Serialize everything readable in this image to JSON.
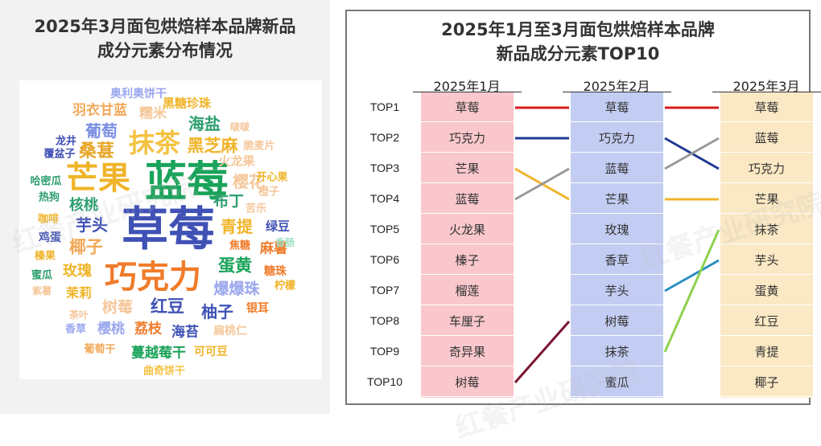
{
  "left": {
    "title_line1": "2025年3月面包烘焙样本品牌新品",
    "title_line2": "成分元素分布情况"
  },
  "right": {
    "title_line1": "2025年1月至3月面包烘焙样本品牌",
    "title_line2": "新品成分元素TOP10"
  },
  "watermark": "红餐产业研究院",
  "chart_data": [
    {
      "type": "wordcloud",
      "title": "2025年3月面包烘焙样本品牌新品成分元素分布情况",
      "words": [
        {
          "text": "草莓",
          "color": "#3f51b5"
        },
        {
          "text": "蓝莓",
          "color": "#1aa35a"
        },
        {
          "text": "芒果",
          "color": "#f0b429"
        },
        {
          "text": "巧克力",
          "color": "#f07c2a"
        },
        {
          "text": "抹茶",
          "color": "#f5c242"
        },
        {
          "text": "桑葚",
          "color": "#e8a72a"
        },
        {
          "text": "海盐",
          "color": "#2e9e6f"
        },
        {
          "text": "黑芝麻",
          "color": "#f0b429"
        },
        {
          "text": "葡萄",
          "color": "#7b8fe0"
        },
        {
          "text": "羽衣甘蓝",
          "color": "#f2a95a"
        },
        {
          "text": "糯米",
          "color": "#f5c79a"
        },
        {
          "text": "黑糖珍珠",
          "color": "#f0b429"
        },
        {
          "text": "奥利奥饼干",
          "color": "#9aa7ee"
        },
        {
          "text": "啵啵",
          "color": "#f5c79a"
        },
        {
          "text": "脆麦片",
          "color": "#f5c79a"
        },
        {
          "text": "火龙果",
          "color": "#f5c79a"
        },
        {
          "text": "龙井",
          "color": "#3f51b5"
        },
        {
          "text": "覆盆子",
          "color": "#3f51b5"
        },
        {
          "text": "樱花",
          "color": "#f5c79a"
        },
        {
          "text": "开心果",
          "color": "#f0b429"
        },
        {
          "text": "橙子",
          "color": "#f5c79a"
        },
        {
          "text": "哈密瓜",
          "color": "#2e9e6f"
        },
        {
          "text": "热狗",
          "color": "#2e9e6f"
        },
        {
          "text": "核桃",
          "color": "#2e9e6f"
        },
        {
          "text": "布丁",
          "color": "#2e9e6f"
        },
        {
          "text": "苦乐",
          "color": "#f5c79a"
        },
        {
          "text": "咖啡",
          "color": "#f0b429"
        },
        {
          "text": "芋头",
          "color": "#3f51b5"
        },
        {
          "text": "青提",
          "color": "#f0b429"
        },
        {
          "text": "绿豆",
          "color": "#3f51b5"
        },
        {
          "text": "鸡蛋",
          "color": "#3f51b5"
        },
        {
          "text": "椰子",
          "color": "#f2a95a"
        },
        {
          "text": "焦糖",
          "color": "#f07c2a"
        },
        {
          "text": "麻薯",
          "color": "#f07c2a"
        },
        {
          "text": "香肠",
          "color": "#9ee0c0"
        },
        {
          "text": "榛果",
          "color": "#f0b429"
        },
        {
          "text": "玫瑰",
          "color": "#f0b429"
        },
        {
          "text": "蛋黄",
          "color": "#1aa35a"
        },
        {
          "text": "糖珠",
          "color": "#f07c2a"
        },
        {
          "text": "蜜瓜",
          "color": "#2e9e6f"
        },
        {
          "text": "紫薯",
          "color": "#f5c79a"
        },
        {
          "text": "茉莉",
          "color": "#f0b429"
        },
        {
          "text": "爆爆珠",
          "color": "#9aa7ee"
        },
        {
          "text": "柠檬",
          "color": "#f0b429"
        },
        {
          "text": "树莓",
          "color": "#f5c79a"
        },
        {
          "text": "红豆",
          "color": "#3f51b5"
        },
        {
          "text": "柚子",
          "color": "#3f51b5"
        },
        {
          "text": "银耳",
          "color": "#f07c2a"
        },
        {
          "text": "茶叶",
          "color": "#f5c79a"
        },
        {
          "text": "香草",
          "color": "#9aa7ee"
        },
        {
          "text": "樱桃",
          "color": "#9aa7ee"
        },
        {
          "text": "荔枝",
          "color": "#f07c2a"
        },
        {
          "text": "海苔",
          "color": "#3f51b5"
        },
        {
          "text": "扁桃仁",
          "color": "#f5c79a"
        },
        {
          "text": "葡萄干",
          "color": "#f2a95a"
        },
        {
          "text": "蔓越莓干",
          "color": "#1aa35a"
        },
        {
          "text": "可可豆",
          "color": "#f0b429"
        },
        {
          "text": "曲奇饼干",
          "color": "#f5c242"
        }
      ]
    },
    {
      "type": "table",
      "title": "2025年1月至3月面包烘焙样本品牌新品成分元素TOP10",
      "ranks": [
        "TOP1",
        "TOP2",
        "TOP3",
        "TOP4",
        "TOP5",
        "TOP6",
        "TOP7",
        "TOP8",
        "TOP9",
        "TOP10"
      ],
      "columns": [
        {
          "name": "2025年1月",
          "color": "#f9c7cc",
          "items": [
            "草莓",
            "巧克力",
            "芒果",
            "蓝莓",
            "火龙果",
            "榛子",
            "榴莲",
            "车厘子",
            "奇异果",
            "树莓"
          ]
        },
        {
          "name": "2025年2月",
          "color": "#c3cdf3",
          "items": [
            "草莓",
            "巧克力",
            "蓝莓",
            "芒果",
            "玫瑰",
            "香草",
            "芋头",
            "树莓",
            "抹茶",
            "蜜瓜"
          ]
        },
        {
          "name": "2025年3月",
          "color": "#fbe8c4",
          "items": [
            "草莓",
            "蓝莓",
            "巧克力",
            "芒果",
            "抹茶",
            "芋头",
            "蛋黄",
            "红豆",
            "青提",
            "椰子"
          ]
        }
      ],
      "links_jan_feb": [
        {
          "item": "草莓",
          "from_rank": 1,
          "to_rank": 1,
          "color": "#d7191c"
        },
        {
          "item": "巧克力",
          "from_rank": 2,
          "to_rank": 2,
          "color": "#1f3a93"
        },
        {
          "item": "芒果",
          "from_rank": 3,
          "to_rank": 4,
          "color": "#f0b429"
        },
        {
          "item": "蓝莓",
          "from_rank": 4,
          "to_rank": 3,
          "color": "#999999"
        },
        {
          "item": "树莓",
          "from_rank": 10,
          "to_rank": 8,
          "color": "#7a1430"
        }
      ],
      "links_feb_mar": [
        {
          "item": "草莓",
          "from_rank": 1,
          "to_rank": 1,
          "color": "#d7191c"
        },
        {
          "item": "巧克力",
          "from_rank": 2,
          "to_rank": 3,
          "color": "#1f3a93"
        },
        {
          "item": "蓝莓",
          "from_rank": 3,
          "to_rank": 2,
          "color": "#999999"
        },
        {
          "item": "芒果",
          "from_rank": 4,
          "to_rank": 4,
          "color": "#f0b429"
        },
        {
          "item": "芋头",
          "from_rank": 7,
          "to_rank": 6,
          "color": "#2a8fc0"
        },
        {
          "item": "抹茶",
          "from_rank": 9,
          "to_rank": 5,
          "color": "#8fd14f"
        }
      ]
    }
  ]
}
